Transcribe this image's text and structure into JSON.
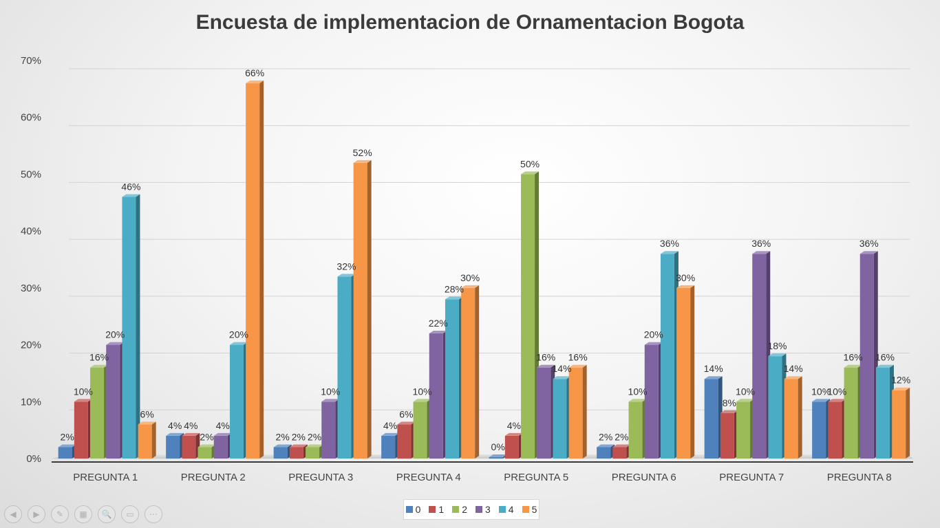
{
  "chart_data": {
    "type": "bar",
    "title": "Encuesta de implementacion de Ornamentacion Bogota",
    "categories": [
      "PREGUNTA 1",
      "PREGUNTA 2",
      "PREGUNTA 3",
      "PREGUNTA 4",
      "PREGUNTA 5",
      "PREGUNTA 6",
      "PREGUNTA 7",
      "PREGUNTA 8"
    ],
    "series": [
      {
        "name": "0",
        "color": "#4f81bd",
        "values": [
          2,
          4,
          2,
          4,
          0,
          2,
          14,
          10
        ],
        "labels": [
          "2%",
          "4%",
          "2%",
          "4%",
          "0%",
          "2%",
          "14%",
          "10%"
        ]
      },
      {
        "name": "1",
        "color": "#c0504d",
        "values": [
          10,
          4,
          2,
          6,
          4,
          2,
          8,
          10
        ],
        "labels": [
          "10%",
          "4%",
          "2%",
          "6%",
          "4%",
          "2%",
          "8%",
          "10%"
        ]
      },
      {
        "name": "2",
        "color": "#9bbb59",
        "values": [
          16,
          2,
          2,
          10,
          50,
          10,
          10,
          16
        ],
        "labels": [
          "16%",
          "2%",
          "2%",
          "10%",
          "50%",
          "10%",
          "10%",
          "16%"
        ]
      },
      {
        "name": "3",
        "color": "#8064a2",
        "values": [
          20,
          4,
          10,
          22,
          16,
          20,
          36,
          36
        ],
        "labels": [
          "20%",
          "4%",
          "10%",
          "22%",
          "16%",
          "20%",
          "36%",
          "36%"
        ]
      },
      {
        "name": "4",
        "color": "#4bacc6",
        "values": [
          46,
          20,
          32,
          28,
          14,
          36,
          18,
          16
        ],
        "labels": [
          "46%",
          "20%",
          "32%",
          "28%",
          "14%",
          "36%",
          "18%",
          "16%"
        ]
      },
      {
        "name": "5",
        "color": "#f79646",
        "values": [
          6,
          66,
          52,
          30,
          16,
          30,
          14,
          12
        ],
        "labels": [
          "6%",
          "66%",
          "52%",
          "30%",
          "16%",
          "30%",
          "14%",
          "12%"
        ]
      }
    ],
    "yticks": [
      "0%",
      "10%",
      "20%",
      "30%",
      "40%",
      "50%",
      "60%",
      "70%"
    ],
    "ylim": [
      0,
      70
    ],
    "grid": true,
    "legend_position": "bottom"
  },
  "legend": {
    "items": [
      "0",
      "1",
      "2",
      "3",
      "4",
      "5"
    ]
  },
  "slide_controls": [
    {
      "icon": "previous-slide-icon",
      "glyph": "◀"
    },
    {
      "icon": "next-slide-icon",
      "glyph": "▶"
    },
    {
      "icon": "pen-icon",
      "glyph": "✎"
    },
    {
      "icon": "slides-grid-icon",
      "glyph": "▦"
    },
    {
      "icon": "zoom-icon",
      "glyph": "🔍"
    },
    {
      "icon": "screen-icon",
      "glyph": "▭"
    },
    {
      "icon": "more-options-icon",
      "glyph": "⋯"
    }
  ]
}
